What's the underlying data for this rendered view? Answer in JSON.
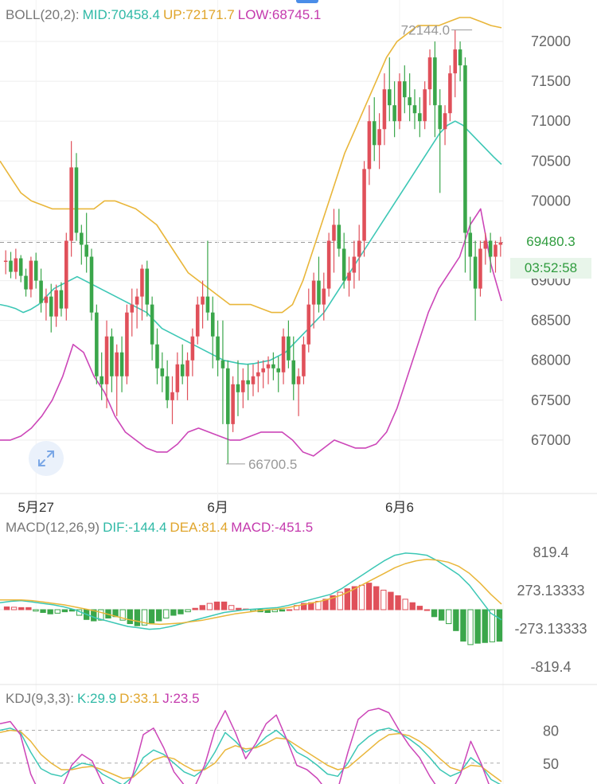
{
  "colors": {
    "up": "#e0505a",
    "down": "#3aa64a",
    "mid": "#3cc7b5",
    "upper": "#e9b63a",
    "lower": "#cc46b8",
    "grid": "#eeeeee",
    "text": "#333333",
    "axis": "#666666"
  },
  "headers": {
    "boll": {
      "name": "BOLL(20,2):",
      "mid": "MID:70458.4",
      "up": "UP:72171.7",
      "low": "LOW:68745.1"
    },
    "macd": {
      "name": "MACD(12,26,9)",
      "dif": "DIF:-144.4",
      "dea": "DEA:81.4",
      "macd": "MACD:-451.5"
    },
    "kdj": {
      "name": "KDJ(9,3,3):",
      "k": "K:29.9",
      "d": "D:33.1",
      "j": "J:23.5"
    }
  },
  "current_price": "69480.3",
  "countdown": "03:52:58",
  "expand_icon": "expand-icon",
  "chart_data": [
    {
      "type": "candlestick",
      "name": "price",
      "y_ticks": [
        "67000",
        "67500",
        "68000",
        "68500",
        "69000",
        "69500",
        "70000",
        "70500",
        "71000",
        "71500",
        "72000"
      ],
      "ylim": [
        66330,
        72520
      ],
      "x_labels": [
        {
          "label": "5月27",
          "index": 6
        },
        {
          "label": "6月",
          "index": 42
        },
        {
          "label": "6月6",
          "index": 78
        }
      ],
      "max_label": {
        "text": "72144.0",
        "index": 93,
        "value": 72144.0
      },
      "min_label": {
        "text": "66700.5",
        "index": 43,
        "value": 66700.5
      },
      "current_price": 69480.3,
      "candles": [
        [
          69240,
          69380,
          69080,
          69250
        ],
        [
          69250,
          69360,
          69030,
          69110
        ],
        [
          69110,
          69400,
          69020,
          69280
        ],
        [
          69280,
          69320,
          68980,
          69060
        ],
        [
          69060,
          69150,
          68800,
          68890
        ],
        [
          68890,
          69300,
          68790,
          69250
        ],
        [
          69250,
          69350,
          68900,
          69000
        ],
        [
          69000,
          69150,
          68600,
          68720
        ],
        [
          68720,
          68900,
          68500,
          68800
        ],
        [
          68800,
          68960,
          68350,
          68550
        ],
        [
          68550,
          68950,
          68420,
          68880
        ],
        [
          68880,
          68980,
          68550,
          68650
        ],
        [
          68650,
          69600,
          68500,
          69500
        ],
        [
          69500,
          70750,
          69300,
          70420
        ],
        [
          70420,
          70600,
          69500,
          69600
        ],
        [
          69600,
          69700,
          69200,
          69450
        ],
        [
          69450,
          69850,
          69100,
          69300
        ],
        [
          69300,
          69400,
          68500,
          68600
        ],
        [
          68600,
          68700,
          67700,
          67800
        ],
        [
          67800,
          68100,
          67500,
          67700
        ],
        [
          67700,
          68500,
          67400,
          68300
        ],
        [
          68300,
          68400,
          67600,
          67800
        ],
        [
          67800,
          68200,
          67300,
          68100
        ],
        [
          68100,
          68300,
          67600,
          67800
        ],
        [
          67800,
          68700,
          67700,
          68600
        ],
        [
          68600,
          68900,
          68300,
          68700
        ],
        [
          68700,
          68900,
          68400,
          68800
        ],
        [
          68800,
          69200,
          68500,
          69150
        ],
        [
          69150,
          69250,
          68550,
          68700
        ],
        [
          68700,
          68800,
          68000,
          68200
        ],
        [
          68200,
          68400,
          67700,
          67900
        ],
        [
          67900,
          68100,
          67600,
          67800
        ],
        [
          67800,
          68000,
          67400,
          67500
        ],
        [
          67500,
          67800,
          67200,
          67600
        ],
        [
          67600,
          68100,
          67500,
          67950
        ],
        [
          67950,
          68200,
          67700,
          67800
        ],
        [
          67800,
          68100,
          67500,
          68000
        ],
        [
          68000,
          68400,
          67800,
          68300
        ],
        [
          68300,
          68800,
          68200,
          68700
        ],
        [
          68700,
          69000,
          68400,
          68800
        ],
        [
          68800,
          69500,
          68500,
          68600
        ],
        [
          68600,
          68800,
          67900,
          68300
        ],
        [
          68300,
          68500,
          67800,
          68000
        ],
        [
          68000,
          68500,
          67200,
          67900
        ],
        [
          67900,
          68000,
          66700,
          67200
        ],
        [
          67200,
          67800,
          67100,
          67700
        ],
        [
          67700,
          68000,
          67300,
          67600
        ],
        [
          67600,
          67900,
          67400,
          67750
        ],
        [
          67750,
          67950,
          67500,
          67700
        ],
        [
          67700,
          67950,
          67550,
          67800
        ],
        [
          67800,
          68000,
          67600,
          67850
        ],
        [
          67850,
          68000,
          67650,
          67900
        ],
        [
          67900,
          68050,
          67700,
          67950
        ],
        [
          67950,
          68100,
          67750,
          67900
        ],
        [
          67900,
          68050,
          67600,
          67850
        ],
        [
          67850,
          68400,
          67700,
          68300
        ],
        [
          68300,
          68500,
          67900,
          68000
        ],
        [
          68000,
          68300,
          67500,
          67700
        ],
        [
          67700,
          67900,
          67300,
          67800
        ],
        [
          67800,
          68300,
          67700,
          68200
        ],
        [
          68200,
          68900,
          68100,
          68700
        ],
        [
          68700,
          69100,
          68400,
          69000
        ],
        [
          69000,
          69300,
          68600,
          68700
        ],
        [
          68700,
          69100,
          68500,
          68900
        ],
        [
          68900,
          69600,
          68800,
          69500
        ],
        [
          69500,
          69900,
          69100,
          69700
        ],
        [
          69700,
          69900,
          69300,
          69400
        ],
        [
          69400,
          69600,
          68900,
          69000
        ],
        [
          69000,
          69300,
          68800,
          69100
        ],
        [
          69100,
          69500,
          68900,
          69300
        ],
        [
          69300,
          69700,
          69000,
          69500
        ],
        [
          69500,
          70500,
          69300,
          70400
        ],
        [
          70400,
          71200,
          70200,
          71000
        ],
        [
          71000,
          71300,
          70500,
          70700
        ],
        [
          70700,
          71100,
          70400,
          70900
        ],
        [
          70900,
          71600,
          70700,
          71400
        ],
        [
          71400,
          71800,
          71000,
          71200
        ],
        [
          71200,
          71500,
          70800,
          71000
        ],
        [
          71000,
          71600,
          70900,
          71500
        ],
        [
          71500,
          71700,
          71100,
          71300
        ],
        [
          71300,
          71600,
          71000,
          71200
        ],
        [
          71200,
          71400,
          70900,
          71100
        ],
        [
          71100,
          71300,
          70800,
          71000
        ],
        [
          71000,
          71500,
          70900,
          71400
        ],
        [
          71400,
          71900,
          71200,
          71800
        ],
        [
          71800,
          72000,
          70800,
          71200
        ],
        [
          71200,
          71400,
          70100,
          70900
        ],
        [
          70900,
          71200,
          70700,
          71100
        ],
        [
          71100,
          71700,
          71000,
          71600
        ],
        [
          71600,
          72144,
          71300,
          71900
        ],
        [
          71900,
          72000,
          71500,
          71700
        ],
        [
          71700,
          71800,
          69100,
          69600
        ],
        [
          69600,
          69800,
          69000,
          69300
        ],
        [
          69300,
          69500,
          68500,
          68900
        ],
        [
          68900,
          69500,
          68800,
          69400
        ],
        [
          69400,
          69600,
          69200,
          69500
        ],
        [
          69500,
          69600,
          69100,
          69300
        ],
        [
          69300,
          69500,
          69100,
          69450
        ],
        [
          69450,
          69550,
          69300,
          69480.3
        ]
      ],
      "boll_mid": [
        68700,
        68680,
        68650,
        68600,
        68640,
        68700,
        68800,
        68900,
        68950,
        69000,
        69050,
        69000,
        68950,
        68900,
        68850,
        68800,
        68750,
        68700,
        68650,
        68600,
        68500,
        68400,
        68350,
        68300,
        68250,
        68200,
        68150,
        68100,
        68050,
        68000,
        67980,
        67960,
        67950,
        67960,
        67980,
        68000,
        68050,
        68100,
        68200,
        68300,
        68400,
        68500,
        68600,
        68750,
        68900,
        69050,
        69200,
        69350,
        69500,
        69650,
        69800,
        69950,
        70100,
        70250,
        70400,
        70550,
        70700,
        70850,
        70950,
        71000,
        70950,
        70850,
        70750,
        70650,
        70550,
        70458.4
      ],
      "boll_mid_start": 0,
      "boll_upper": [
        70500,
        70300,
        70100,
        70000,
        69950,
        69900,
        69900,
        69900,
        69900,
        69900,
        70000,
        70000,
        69950,
        69900,
        69800,
        69700,
        69500,
        69300,
        69100,
        69000,
        68900,
        68800,
        68700,
        68700,
        68700,
        68650,
        68600,
        68600,
        68700,
        69000,
        69400,
        69800,
        70200,
        70600,
        70900,
        71200,
        71500,
        71800,
        72000,
        72100,
        72200,
        72200,
        72200,
        72250,
        72300,
        72300,
        72250,
        72200,
        72171.7
      ],
      "boll_upper_step": 2,
      "boll_lower": [
        67000,
        67000,
        67050,
        67150,
        67300,
        67500,
        67800,
        68200,
        68100,
        67800,
        67600,
        67300,
        67100,
        67000,
        66900,
        66850,
        66850,
        66950,
        67100,
        67150,
        67100,
        67050,
        67000,
        67000,
        67050,
        67100,
        67100,
        67100,
        67000,
        66850,
        66800,
        66900,
        67000,
        66950,
        66900,
        66900,
        66950,
        67100,
        67400,
        67800,
        68200,
        68600,
        68900,
        69100,
        69300,
        69700,
        69900,
        69200,
        68745.1
      ],
      "boll_lower_step": 2
    },
    {
      "type": "bar+line",
      "name": "macd",
      "y_ticks": [
        "819.4",
        "273.13333",
        "-273.13333",
        "-819.4"
      ],
      "ylim": [
        -980,
        980
      ],
      "histogram": [
        40,
        35,
        30,
        30,
        -20,
        -40,
        -60,
        -50,
        -30,
        -20,
        -80,
        -140,
        -160,
        -150,
        -120,
        -100,
        -150,
        -200,
        -230,
        -220,
        -190,
        -160,
        -120,
        -80,
        -60,
        -30,
        20,
        60,
        90,
        110,
        110,
        60,
        20,
        10,
        -20,
        -30,
        -40,
        -30,
        -20,
        0,
        60,
        90,
        100,
        120,
        150,
        200,
        250,
        300,
        330,
        350,
        380,
        330,
        280,
        250,
        200,
        150,
        100,
        50,
        0,
        -100,
        -150,
        -200,
        -300,
        -450,
        -500,
        -480,
        -470,
        -460,
        -451.5
      ],
      "dif": [
        100,
        120,
        130,
        110,
        90,
        70,
        40,
        0,
        -60,
        -120,
        -160,
        -200,
        -240,
        -260,
        -280,
        -270,
        -240,
        -200,
        -160,
        -120,
        -80,
        -40,
        -20,
        0,
        10,
        20,
        30,
        60,
        100,
        140,
        180,
        220,
        300,
        400,
        500,
        600,
        700,
        780,
        810,
        800,
        780,
        700,
        600,
        500,
        350,
        150,
        -50,
        -144.4
      ],
      "dea": [
        140,
        140,
        140,
        130,
        110,
        90,
        70,
        40,
        10,
        -20,
        -60,
        -100,
        -140,
        -170,
        -200,
        -210,
        -200,
        -190,
        -170,
        -150,
        -120,
        -90,
        -60,
        -40,
        -20,
        0,
        10,
        30,
        60,
        90,
        120,
        160,
        210,
        280,
        360,
        440,
        520,
        600,
        660,
        700,
        720,
        710,
        680,
        620,
        520,
        380,
        220,
        81.4
      ],
      "line_step": 1.45
    },
    {
      "type": "line",
      "name": "kdj",
      "y_ticks": [
        "80",
        "50"
      ],
      "ylim": [
        20,
        100
      ],
      "k": [
        80,
        82,
        78,
        60,
        45,
        40,
        38,
        45,
        50,
        48,
        40,
        35,
        30,
        38,
        55,
        62,
        58,
        50,
        42,
        38,
        45,
        60,
        78,
        70,
        60,
        65,
        74,
        80,
        72,
        60,
        55,
        48,
        40,
        38,
        50,
        66,
        74,
        80,
        82,
        78,
        72,
        65,
        55,
        44,
        38,
        42,
        55,
        48,
        35,
        29.9
      ],
      "d": [
        78,
        80,
        79,
        70,
        58,
        50,
        44,
        44,
        46,
        47,
        44,
        40,
        36,
        37,
        45,
        53,
        56,
        54,
        48,
        43,
        44,
        50,
        62,
        66,
        63,
        64,
        68,
        73,
        72,
        66,
        60,
        54,
        48,
        44,
        46,
        54,
        62,
        70,
        76,
        77,
        75,
        70,
        63,
        54,
        46,
        43,
        48,
        47,
        40,
        33.1
      ],
      "j": [
        86,
        88,
        76,
        40,
        20,
        20,
        26,
        48,
        58,
        52,
        32,
        24,
        18,
        40,
        76,
        82,
        64,
        42,
        30,
        28,
        48,
        80,
        98,
        78,
        54,
        68,
        86,
        94,
        72,
        48,
        44,
        36,
        24,
        26,
        60,
        90,
        98,
        100,
        96,
        80,
        66,
        55,
        38,
        24,
        22,
        40,
        70,
        50,
        25,
        23.5
      ],
      "line_step": 13
    }
  ]
}
